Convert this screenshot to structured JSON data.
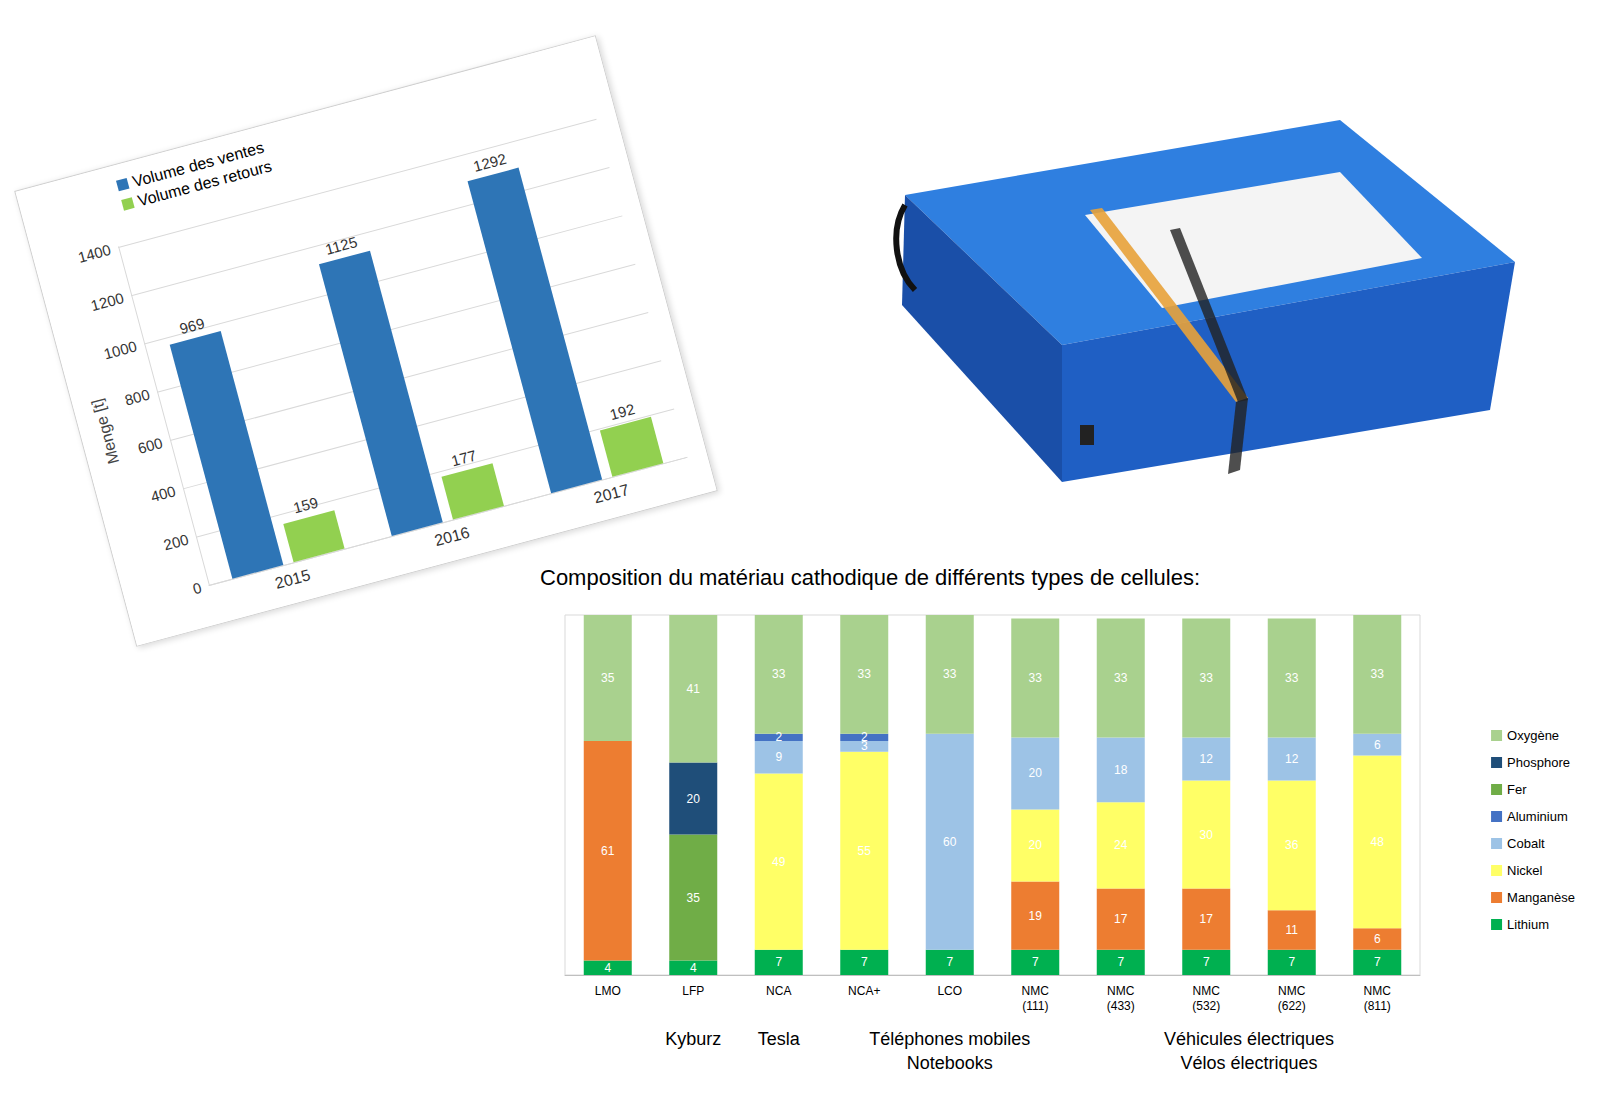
{
  "chart_data": [
    {
      "type": "bar",
      "ylabel": "Menge [t]",
      "categories": [
        "2015",
        "2016",
        "2017"
      ],
      "series": [
        {
          "name": "Volume des ventes",
          "color": "#2e75b6",
          "values": [
            969,
            1125,
            1292
          ]
        },
        {
          "name": "Volume des retours",
          "color": "#92d050",
          "values": [
            159,
            177,
            192
          ]
        }
      ],
      "ylim": [
        0,
        1400
      ],
      "yticks": [
        0,
        200,
        400,
        600,
        800,
        1000,
        1200,
        1400
      ],
      "grid": true,
      "legend": "upper left",
      "data_labels": true
    },
    {
      "type": "bar",
      "title": "Composition du matériau cathodique de différents types de cellules:",
      "categories": [
        "LMO",
        "LFP",
        "NCA",
        "NCA+",
        "LCO",
        "NMC (111)",
        "NMC (433)",
        "NMC (532)",
        "NMC (622)",
        "NMC (811)"
      ],
      "stacked": true,
      "series": [
        {
          "name": "Lithium",
          "color": "#00b050",
          "values": [
            4,
            4,
            7,
            7,
            7,
            7,
            7,
            7,
            7,
            7
          ]
        },
        {
          "name": "Manganèse",
          "color": "#ed7d31",
          "values": [
            61,
            null,
            null,
            null,
            null,
            19,
            17,
            17,
            11,
            6
          ]
        },
        {
          "name": "Nickel",
          "color": "#ffff66",
          "values": [
            null,
            null,
            49,
            55,
            null,
            20,
            24,
            30,
            36,
            48
          ]
        },
        {
          "name": "Cobalt",
          "color": "#9dc3e6",
          "values": [
            null,
            null,
            9,
            3,
            60,
            20,
            18,
            12,
            12,
            6
          ]
        },
        {
          "name": "Aluminium",
          "color": "#4472c4",
          "values": [
            null,
            null,
            2,
            2,
            null,
            null,
            null,
            null,
            null,
            null
          ]
        },
        {
          "name": "Fer",
          "color": "#70ad47",
          "values": [
            null,
            35,
            null,
            null,
            null,
            null,
            null,
            null,
            null,
            null
          ]
        },
        {
          "name": "Phosphore",
          "color": "#1f4e79",
          "values": [
            null,
            20,
            null,
            null,
            null,
            null,
            null,
            null,
            null,
            null
          ]
        },
        {
          "name": "Oxygène",
          "color": "#a9d18e",
          "values": [
            35,
            41,
            33,
            33,
            33,
            33,
            33,
            33,
            33,
            33
          ]
        }
      ],
      "ylim": [
        0,
        100
      ],
      "grid": false,
      "tick_labels": "x",
      "legend": "right",
      "data_labels": true,
      "annotations": [
        {
          "text": [
            "Kyburz"
          ],
          "categories": [
            "LFP"
          ]
        },
        {
          "text": [
            "Tesla"
          ],
          "categories": [
            "NCA"
          ]
        },
        {
          "text": [
            "Téléphones mobiles",
            "Notebooks"
          ],
          "categories": [
            "LCO"
          ]
        },
        {
          "text": [
            "Véhicules électriques",
            "Vélos électriques"
          ],
          "categories": [
            "NMC (532)",
            "NMC (622)"
          ]
        }
      ]
    }
  ]
}
